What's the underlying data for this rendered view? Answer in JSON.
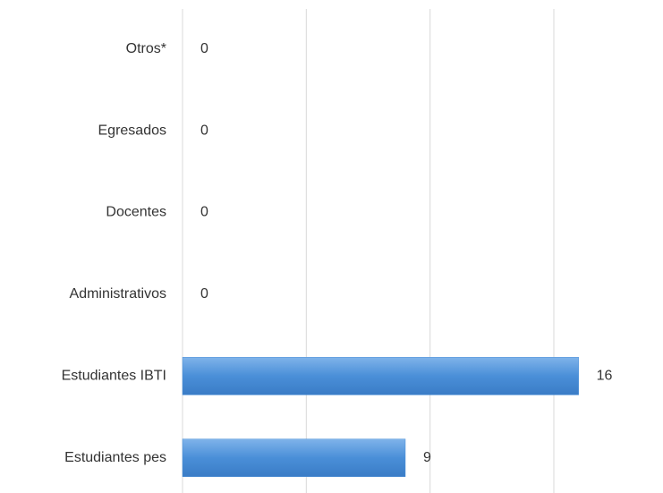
{
  "chart_data": {
    "type": "hbar",
    "categories": [
      "Otros*",
      "Egresados",
      "Docentes",
      "Administrativos",
      "Estudiantes IBTI",
      "Estudiantes pes"
    ],
    "values": [
      0,
      0,
      0,
      0,
      16,
      9
    ],
    "color": "#4a8fd8",
    "xlim": [
      0,
      18
    ],
    "xticks": [
      0,
      5,
      10,
      15
    ],
    "grid": true
  }
}
